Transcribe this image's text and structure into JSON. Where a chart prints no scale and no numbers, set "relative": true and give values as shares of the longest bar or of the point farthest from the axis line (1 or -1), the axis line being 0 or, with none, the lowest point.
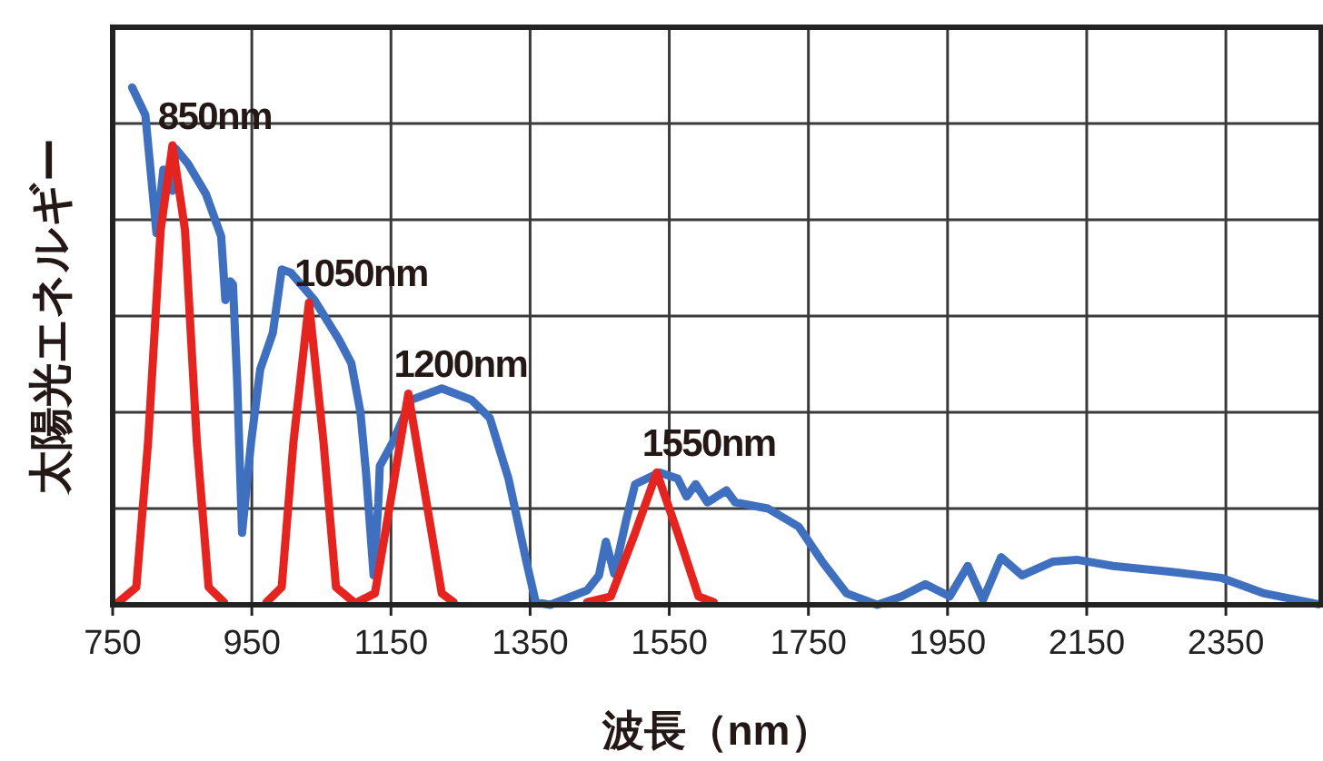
{
  "chart_data": {
    "type": "line",
    "relative": true,
    "xlabel": "波長（nm）",
    "ylabel": "太陽光エネルギー",
    "xlim": [
      750,
      2487
    ],
    "xticks": [
      750,
      950,
      1150,
      1350,
      1550,
      1750,
      1950,
      2150,
      2350
    ],
    "grid": true,
    "series": [
      {
        "color": "#3f6fbf",
        "x": [
          778,
          797,
          813,
          823,
          836,
          840,
          858,
          884,
          906,
          912,
          919,
          923,
          929,
          936,
          949,
          962,
          980,
          993,
          1006,
          1040,
          1075,
          1093,
          1106,
          1114,
          1125,
          1132,
          1134,
          1153,
          1179,
          1223,
          1266,
          1292,
          1319,
          1345,
          1358,
          1379,
          1432,
          1449,
          1459,
          1471,
          1488,
          1501,
          1536,
          1562,
          1575,
          1588,
          1605,
          1632,
          1645,
          1692,
          1736,
          1771,
          1805,
          1849,
          1884,
          1918,
          1953,
          1979,
          2001,
          2027,
          2057,
          2101,
          2136,
          2188,
          2275,
          2344,
          2405,
          2483
        ],
        "values": [
          1.0,
          0.946,
          0.718,
          0.841,
          0.8,
          0.882,
          0.853,
          0.794,
          0.712,
          0.589,
          0.625,
          0.619,
          0.432,
          0.139,
          0.315,
          0.455,
          0.525,
          0.648,
          0.642,
          0.589,
          0.513,
          0.467,
          0.373,
          0.256,
          0.057,
          0.198,
          0.268,
          0.315,
          0.396,
          0.418,
          0.396,
          0.361,
          0.244,
          0.081,
          0.005,
          0.0,
          0.028,
          0.057,
          0.122,
          0.06,
          0.163,
          0.233,
          0.256,
          0.244,
          0.209,
          0.233,
          0.198,
          0.221,
          0.198,
          0.186,
          0.151,
          0.081,
          0.022,
          0.0,
          0.016,
          0.04,
          0.016,
          0.075,
          0.01,
          0.092,
          0.057,
          0.083,
          0.087,
          0.075,
          0.063,
          0.052,
          0.022,
          0.001
        ]
      },
      {
        "color": "#e5231f",
        "x": [
          758,
          784,
          801,
          819,
          836,
          854,
          871,
          888,
          910
        ],
        "values": [
          0.005,
          0.034,
          0.315,
          0.724,
          0.888,
          0.724,
          0.315,
          0.034,
          0.005
        ]
      },
      {
        "color": "#e5231f",
        "x": [
          971,
          993,
          1010,
          1032,
          1053,
          1071,
          1097
        ],
        "values": [
          0.005,
          0.034,
          0.315,
          0.584,
          0.315,
          0.034,
          0.005
        ]
      },
      {
        "color": "#e5231f",
        "x": [
          1101,
          1127,
          1149,
          1175,
          1201,
          1223,
          1240
        ],
        "values": [
          0.005,
          0.022,
          0.198,
          0.408,
          0.198,
          0.022,
          0.005
        ]
      },
      {
        "color": "#e5231f",
        "x": [
          1432,
          1466,
          1501,
          1532,
          1562,
          1592,
          1614
        ],
        "values": [
          0.005,
          0.016,
          0.139,
          0.256,
          0.139,
          0.016,
          0.005
        ]
      }
    ],
    "annotations": [
      {
        "text": "850nm",
        "x": 836,
        "y": 0.888
      },
      {
        "text": "1050nm",
        "x": 1032,
        "y": 0.584
      },
      {
        "text": "1200nm",
        "x": 1175,
        "y": 0.408
      },
      {
        "text": "1550nm",
        "x": 1532,
        "y": 0.256
      }
    ]
  }
}
